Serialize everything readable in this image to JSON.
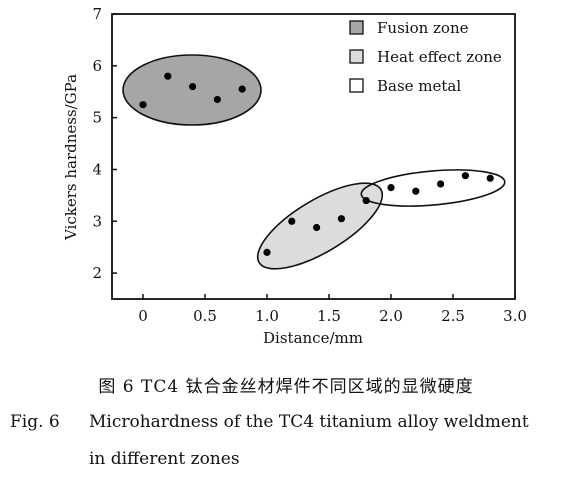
{
  "chart_data": {
    "type": "scatter",
    "xlabel": "Distance/mm",
    "ylabel": "Vickers hardness/GPa",
    "xlim": [
      -0.25,
      3.0
    ],
    "ylim": [
      1.5,
      7.0
    ],
    "x_ticks": [
      "0",
      "0.5",
      "1.0",
      "1.5",
      "2.0",
      "2.5",
      "3.0"
    ],
    "x_tick_values": [
      0,
      0.5,
      1.0,
      1.5,
      2.0,
      2.5,
      3.0
    ],
    "y_ticks": [
      "2",
      "3",
      "4",
      "5",
      "6",
      "7"
    ],
    "y_tick_values": [
      2,
      3,
      4,
      5,
      6,
      7
    ],
    "grid": false,
    "legend_position": "top-right",
    "points": {
      "x": [
        0,
        0.2,
        0.4,
        0.6,
        0.8,
        1.0,
        1.2,
        1.4,
        1.6,
        1.8,
        2.0,
        2.2,
        2.4,
        2.6,
        2.8
      ],
      "y": [
        5.25,
        5.8,
        5.6,
        5.35,
        5.55,
        2.4,
        3.0,
        2.88,
        3.05,
        3.4,
        3.65,
        3.58,
        3.72,
        3.88,
        3.83
      ]
    },
    "series": [
      {
        "name": "Fusion zone",
        "color": "#a6a6a6"
      },
      {
        "name": "Heat effect zone",
        "color": "#dcdcdc"
      },
      {
        "name": "Base metal",
        "color": "#ffffff"
      }
    ]
  },
  "caption": {
    "cn": "图 6   TC4 钛合金丝材焊件不同区域的显微硬度",
    "en_label": "Fig. 6",
    "en_line1": "Microhardness of the TC4 titanium alloy weldment",
    "en_line2": "in different zones"
  }
}
